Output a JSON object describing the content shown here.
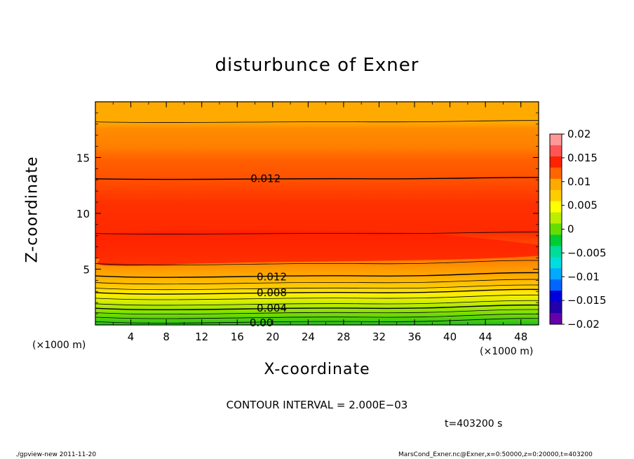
{
  "chart_data": {
    "type": "contour",
    "title": "disturbunce of Exner",
    "xlabel": "X-coordinate",
    "ylabel": "Z-coordinate",
    "x_unit": "(×1000 m)",
    "xlim": [
      0,
      50
    ],
    "ylim": [
      0,
      20
    ],
    "x_ticks": [
      4,
      8,
      12,
      16,
      20,
      24,
      28,
      32,
      36,
      40,
      44,
      48
    ],
    "y_ticks": [
      5,
      10,
      15
    ],
    "colorbar": {
      "ticks": [
        0.02,
        0.015,
        0.01,
        0.005,
        0,
        -0.005,
        -0.01,
        -0.015,
        -0.02
      ],
      "tick_labels": [
        "0.02",
        "0.015",
        "0.01",
        "0.005",
        "0",
        "−0.005",
        "−0.01",
        "−0.015",
        "−0.02"
      ],
      "colors": [
        "#ff9999",
        "#ff5555",
        "#ff2200",
        "#ff6600",
        "#ffaa00",
        "#ffcc00",
        "#ffff00",
        "#bbee00",
        "#66dd00",
        "#00cc33",
        "#00dd99",
        "#00dddd",
        "#00aaff",
        "#0066ff",
        "#0000dd",
        "#2200aa",
        "#6600aa"
      ]
    },
    "contour_labels": [
      {
        "text": "0.012",
        "x": 17.5,
        "z": 13.1
      },
      {
        "text": "0.012",
        "x": 18.2,
        "z": 4.3
      },
      {
        "text": "0.008",
        "x": 18.2,
        "z": 2.9
      },
      {
        "text": "0.004",
        "x": 18.2,
        "z": 1.5
      },
      {
        "text": "0.00",
        "x": 17.4,
        "z": 0.2
      }
    ],
    "contour_interval": "CONTOUR INTERVAL = 2.000E−03"
  },
  "annotations": {
    "time": "t=403200 s",
    "footer_left": "./gpview-new   2011-11-20",
    "footer_right": "MarsCond_Exner.nc@Exner,x=0:50000,z=0:20000,t=403200"
  }
}
